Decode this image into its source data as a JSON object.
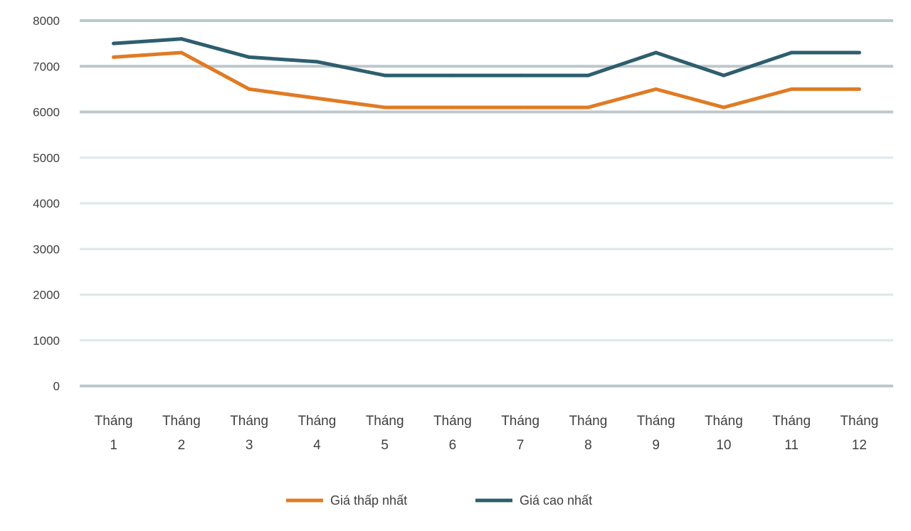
{
  "chart_data": {
    "type": "line",
    "categories": [
      [
        "Tháng",
        "1"
      ],
      [
        "Tháng",
        "2"
      ],
      [
        "Tháng",
        "3"
      ],
      [
        "Tháng",
        "4"
      ],
      [
        "Tháng",
        "5"
      ],
      [
        "Tháng",
        "6"
      ],
      [
        "Tháng",
        "7"
      ],
      [
        "Tháng",
        "8"
      ],
      [
        "Tháng",
        "9"
      ],
      [
        "Tháng",
        "10"
      ],
      [
        "Tháng",
        "11"
      ],
      [
        "Tháng",
        "12"
      ]
    ],
    "series": [
      {
        "name": "Giá thấp nhất",
        "color": "#e07b24",
        "values": [
          7200,
          7300,
          6500,
          6300,
          6100,
          6100,
          6100,
          6100,
          6500,
          6100,
          6500,
          6500
        ]
      },
      {
        "name": "Giá cao nhất",
        "color": "#2e5e6e",
        "values": [
          7500,
          7600,
          7200,
          7100,
          6800,
          6800,
          6800,
          6800,
          7300,
          6800,
          7300,
          7300
        ]
      }
    ],
    "ylim": [
      0,
      8000
    ],
    "yticks": [
      0,
      1000,
      2000,
      3000,
      4000,
      5000,
      6000,
      7000,
      8000
    ],
    "grid": true,
    "legend_position": "bottom",
    "title": "",
    "xlabel": "",
    "ylabel": ""
  }
}
